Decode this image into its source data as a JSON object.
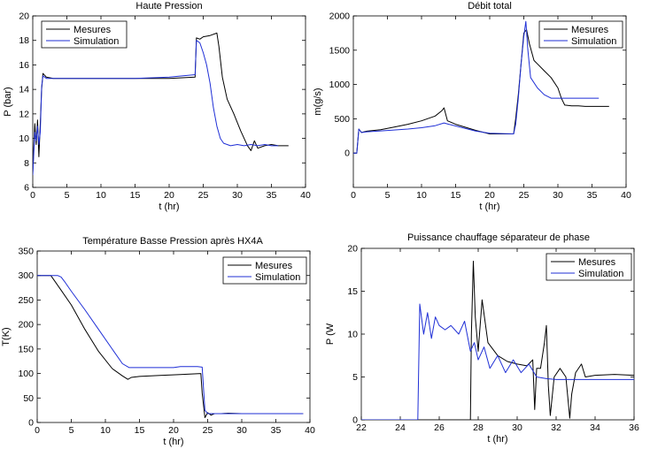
{
  "colors": {
    "measured": "#000000",
    "simulation": "#1f2fd6"
  },
  "chart_data": [
    {
      "type": "line",
      "title": "Haute Pression",
      "xlabel": "t (hr)",
      "ylabel": "P (bar)",
      "xlim": [
        0,
        40
      ],
      "ylim": [
        6,
        20
      ],
      "xticks": [
        0,
        5,
        10,
        15,
        20,
        25,
        30,
        35,
        40
      ],
      "yticks": [
        6,
        8,
        10,
        12,
        14,
        16,
        18,
        20
      ],
      "legend": "top-left",
      "series": [
        {
          "name": "Mesures",
          "color": "measured",
          "x": [
            0,
            0.3,
            0.5,
            0.7,
            0.9,
            1.1,
            1.3,
            1.5,
            2,
            3,
            5,
            10,
            15,
            20,
            23.8,
            24.0,
            24.5,
            25,
            26,
            27,
            27.3,
            27.8,
            28.5,
            29.5,
            30.5,
            31.5,
            32,
            32.5,
            33,
            34,
            35,
            36,
            37.5
          ],
          "y": [
            7.2,
            11.2,
            9.5,
            11.5,
            8.5,
            11.2,
            14.0,
            15.3,
            15.0,
            14.9,
            14.9,
            14.9,
            14.9,
            14.9,
            15.0,
            18.2,
            18.1,
            18.3,
            18.4,
            18.6,
            17.5,
            15.0,
            13.2,
            12.0,
            10.6,
            9.4,
            9.0,
            9.8,
            9.2,
            9.4,
            9.5,
            9.4,
            9.4
          ]
        },
        {
          "name": "Simulation",
          "color": "simulation",
          "x": [
            0,
            0.3,
            0.5,
            0.7,
            0.9,
            1.1,
            1.3,
            1.5,
            2,
            5,
            10,
            15,
            20,
            23.8,
            24.0,
            24.5,
            25,
            25.5,
            26,
            26.5,
            27,
            27.5,
            28,
            28.5,
            29,
            30,
            31,
            32,
            33,
            34,
            35,
            36
          ],
          "y": [
            7.0,
            10.5,
            9.8,
            11.0,
            9.5,
            10.5,
            14.2,
            15.1,
            14.9,
            14.9,
            14.9,
            14.9,
            15.0,
            15.2,
            18.0,
            17.8,
            17.0,
            16.0,
            14.5,
            12.5,
            11.0,
            10.0,
            9.6,
            9.5,
            9.4,
            9.5,
            9.4,
            9.5,
            9.4,
            9.5,
            9.4,
            9.4
          ]
        }
      ]
    },
    {
      "type": "line",
      "title": "Débit total",
      "xlabel": "t (hr)",
      "ylabel": "m(g/s)",
      "xlim": [
        0,
        40
      ],
      "ylim": [
        -500,
        2000
      ],
      "xticks": [
        0,
        5,
        10,
        15,
        20,
        25,
        30,
        35,
        40
      ],
      "yticks": [
        0,
        500,
        1000,
        1500,
        2000
      ],
      "legend": "top-right",
      "series": [
        {
          "name": "Mesures",
          "color": "measured",
          "x": [
            0,
            0.5,
            0.8,
            1.2,
            2,
            4,
            6,
            8,
            10,
            12,
            13.0,
            13.3,
            13.8,
            15,
            18,
            20,
            23.5,
            23.8,
            24.2,
            24.6,
            25,
            25.4,
            25.8,
            26.5,
            27,
            28,
            29,
            30,
            30.5,
            31,
            32,
            33,
            34,
            35,
            36,
            37.5
          ],
          "y": [
            0,
            0,
            350,
            300,
            320,
            340,
            380,
            420,
            470,
            540,
            620,
            660,
            470,
            420,
            330,
            280,
            280,
            500,
            850,
            1300,
            1750,
            1800,
            1600,
            1350,
            1300,
            1200,
            1100,
            950,
            800,
            700,
            690,
            690,
            680,
            680,
            680,
            680
          ]
        },
        {
          "name": "Simulation",
          "color": "simulation",
          "x": [
            0,
            0.5,
            0.8,
            1.2,
            2,
            5,
            8,
            10,
            12,
            13.3,
            14,
            16,
            18,
            20,
            23.5,
            23.8,
            24.2,
            24.6,
            25,
            25.3,
            25.6,
            26,
            27,
            28,
            29,
            30,
            31,
            32,
            33,
            34,
            35,
            36
          ],
          "y": [
            0,
            0,
            350,
            300,
            310,
            330,
            350,
            370,
            400,
            440,
            420,
            370,
            320,
            290,
            280,
            420,
            800,
            1300,
            1700,
            1920,
            1500,
            1100,
            950,
            850,
            800,
            800,
            800,
            800,
            800,
            800,
            800,
            800
          ]
        }
      ]
    },
    {
      "type": "line",
      "title": "Température Basse Pression après HX4A",
      "xlabel": "t (hr)",
      "ylabel": "T(K)",
      "xlim": [
        0,
        40
      ],
      "ylim": [
        0,
        350
      ],
      "xticks": [
        0,
        5,
        10,
        15,
        20,
        25,
        30,
        35,
        40
      ],
      "yticks": [
        0,
        50,
        100,
        150,
        200,
        250,
        300,
        350
      ],
      "legend": "top-right",
      "series": [
        {
          "name": "Mesures",
          "color": "measured",
          "x": [
            0,
            2,
            3.5,
            5,
            7,
            9,
            11,
            12.5,
            13.3,
            13.8,
            15,
            18,
            21,
            24.0,
            24.2,
            24.6,
            25.0,
            25.5,
            26,
            27,
            28,
            30,
            33,
            36,
            39
          ],
          "y": [
            300,
            300,
            270,
            240,
            190,
            145,
            110,
            95,
            88,
            92,
            94,
            96,
            98,
            100,
            60,
            10,
            20,
            15,
            18,
            18,
            19,
            18,
            18,
            18,
            18
          ]
        },
        {
          "name": "Simulation",
          "color": "simulation",
          "x": [
            0,
            2,
            3,
            3.5,
            4,
            5,
            7,
            9,
            11,
            12.5,
            13.5,
            15,
            20,
            21,
            23.5,
            24.2,
            24.6,
            25.0,
            25.5,
            27,
            30,
            35,
            39
          ],
          "y": [
            300,
            300,
            300,
            297,
            288,
            268,
            230,
            190,
            150,
            120,
            112,
            112,
            112,
            114,
            114,
            113,
            25,
            18,
            18,
            18,
            18,
            18,
            18
          ]
        }
      ]
    },
    {
      "type": "line",
      "title": "Puissance chauffage séparateur de phase",
      "xlabel": "t (hr)",
      "ylabel": "P (W",
      "xlim": [
        22,
        36
      ],
      "ylim": [
        0,
        20
      ],
      "xticks": [
        22,
        24,
        26,
        28,
        30,
        32,
        34,
        36
      ],
      "yticks": [
        0,
        5,
        10,
        15,
        20
      ],
      "legend": "top-right",
      "series": [
        {
          "name": "Mesures",
          "color": "measured",
          "x": [
            22,
            25,
            27.6,
            27.65,
            27.75,
            27.85,
            28.0,
            28.2,
            28.5,
            29,
            29.5,
            30,
            30.5,
            30.8,
            30.9,
            31.0,
            31.2,
            31.4,
            31.5,
            31.6,
            31.7,
            31.9,
            32.2,
            32.5,
            32.7,
            32.8,
            33,
            33.3,
            33.5,
            34,
            35,
            36
          ],
          "y": [
            0,
            0,
            0,
            10,
            18.5,
            12,
            8,
            14,
            9,
            7.5,
            6.8,
            6.5,
            6.3,
            7,
            1.2,
            6,
            6,
            9,
            11,
            4,
            0.5,
            5,
            6,
            5,
            0.2,
            3,
            5.5,
            6.5,
            5,
            5.2,
            5.3,
            5.2
          ]
        },
        {
          "name": "Simulation",
          "color": "simulation",
          "x": [
            22,
            24.6,
            24.9,
            25.0,
            25.2,
            25.4,
            25.6,
            25.8,
            26,
            26.3,
            26.6,
            27,
            27.3,
            27.6,
            27.8,
            28,
            28.3,
            28.6,
            29,
            29.4,
            29.8,
            30.2,
            30.6,
            31.0,
            31.5,
            32,
            33,
            34,
            35,
            36
          ],
          "y": [
            0,
            0,
            0,
            13.5,
            10,
            12.5,
            9.5,
            12,
            11,
            10.5,
            11,
            10,
            11.5,
            8,
            9,
            7,
            8.5,
            6,
            7.5,
            5.5,
            7,
            5.5,
            6.5,
            5,
            4.8,
            4.7,
            4.7,
            4.7,
            4.7,
            4.7
          ]
        }
      ]
    }
  ]
}
